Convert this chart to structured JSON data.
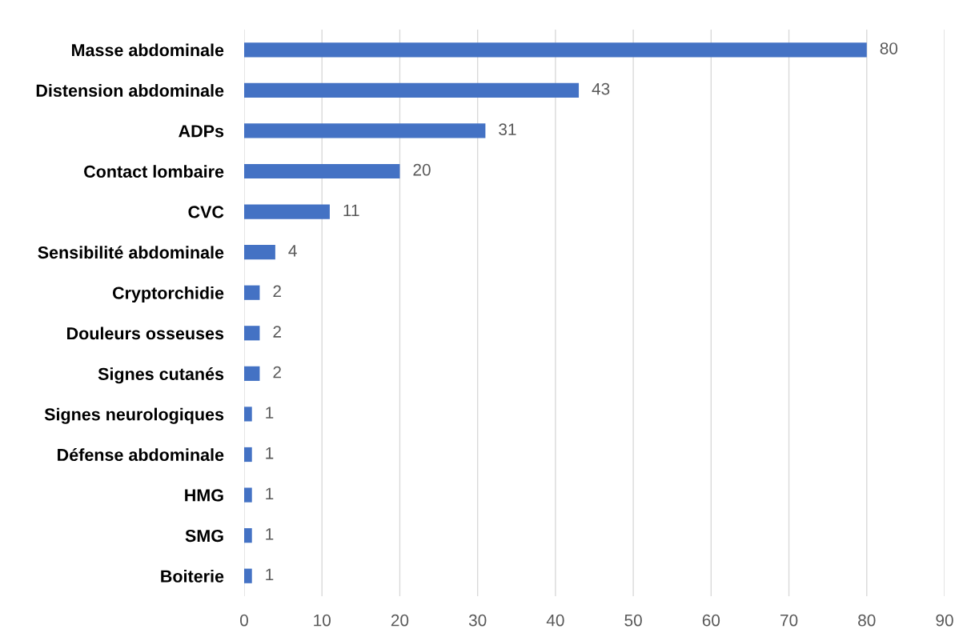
{
  "chart_data": {
    "type": "bar",
    "orientation": "horizontal",
    "categories": [
      "Masse abdominale",
      "Distension abdominale",
      "ADPs",
      "Contact lombaire",
      "CVC",
      "Sensibilité abdominale",
      "Cryptorchidie",
      "Douleurs osseuses",
      "Signes cutanés",
      "Signes neurologiques",
      "Défense abdominale",
      "HMG",
      "SMG",
      "Boiterie"
    ],
    "values": [
      80,
      43,
      31,
      20,
      11,
      4,
      2,
      2,
      2,
      1,
      1,
      1,
      1,
      1
    ],
    "color": "#4472c4",
    "xlim": [
      0,
      90
    ],
    "xticks": [
      0,
      10,
      20,
      30,
      40,
      50,
      60,
      70,
      80,
      90
    ],
    "grid": "x",
    "data_labels": true
  }
}
